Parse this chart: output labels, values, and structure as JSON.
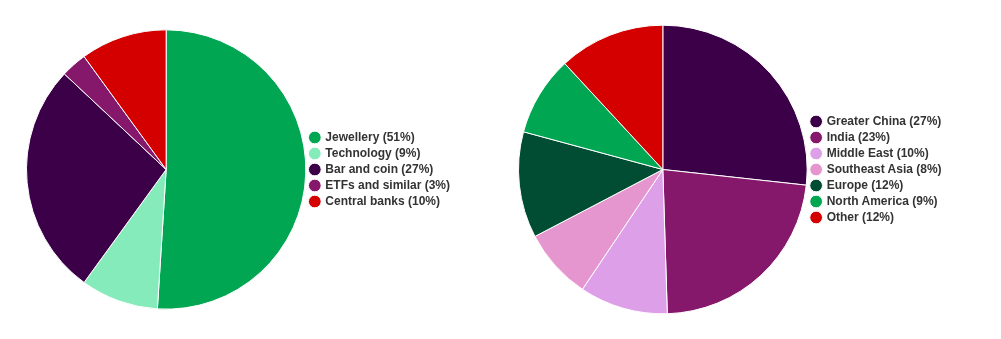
{
  "chart_data": [
    {
      "type": "pie",
      "categories": [
        "Jewellery (51%)",
        "Technology (9%)",
        "Bar and coin (27%)",
        "ETFs and similar (3%)",
        "Central banks (10%)"
      ],
      "values": [
        51,
        9,
        27,
        3,
        10
      ],
      "colors": [
        "#00a651",
        "#85ebba",
        "#3b0048",
        "#86186b",
        "#d40000"
      ],
      "legend": "right"
    },
    {
      "type": "pie",
      "categories": [
        "Greater China (27%)",
        "India (23%)",
        "Middle East (10%)",
        "Southeast Asia (8%)",
        "Europe (12%)",
        "North America (9%)",
        "Other (12%)"
      ],
      "values": [
        27,
        23,
        10,
        8,
        12,
        9,
        12
      ],
      "colors": [
        "#3b0048",
        "#86186b",
        "#dda0e8",
        "#e696cf",
        "#004d33",
        "#00a651",
        "#d40000"
      ],
      "legend": "right"
    }
  ]
}
